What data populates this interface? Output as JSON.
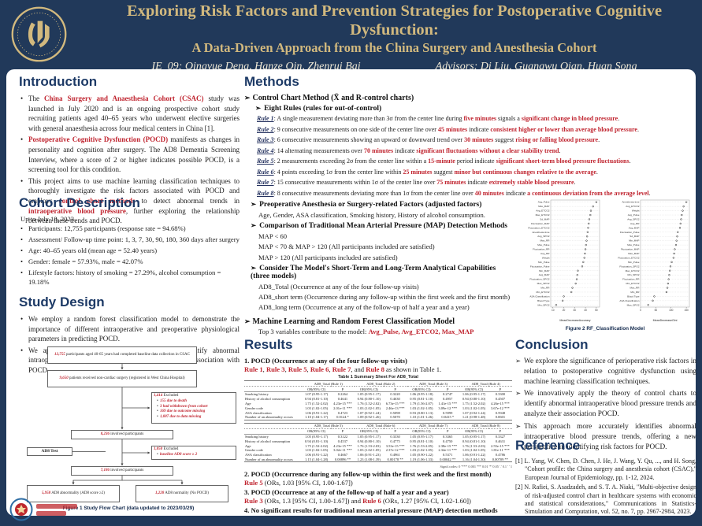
{
  "header": {
    "title_line1": "Exploring Risk Factors and Prevention Strategies for Postoperative Cognitive Dysfunction:",
    "title_line2": "A Data-Driven Approach from the China Surgery and Anesthesia Cohort",
    "team": "IE_09: Qingyue Deng, Hanze Qin, Zhenrui Bai",
    "advisors": "Advisors: Di Liu, Guangwu Qian, Huan Song"
  },
  "colors": {
    "navy": "#21395a",
    "gold": "#d2b97e",
    "accent_red": "#c02530",
    "heading_navy": "#1d3a66"
  },
  "intro": {
    "heading": "Introduction",
    "bullets": [
      [
        [
          "The ",
          "n"
        ],
        [
          "China Surgery and Anaesthesia Cohort (CSAC)",
          "r"
        ],
        [
          " study was launched in July 2020 and is an ongoing prospective cohort study recruiting patients aged 40–65 years who underwent elective surgeries with general anaesthesia across four medical centers in China [1].",
          "n"
        ]
      ],
      [
        [
          "Postoperative Cognitive Dysfunction (POCD)",
          "r"
        ],
        [
          " manifests as changes in personality and cognition after surgery. The AD8 Dementia Screening Interview, where a score of 2 or higher indicates possible POCD, is a screening tool for this condition.",
          "n"
        ]
      ],
      [
        [
          "This project aims to use machine learning classification techniques to thoroughly investigate the risk factors associated with POCD and employs ",
          "n"
        ],
        [
          "control chart methods",
          "r"
        ],
        [
          " to detect abnormal trends in ",
          "n"
        ],
        [
          "intraoperative blood pressure",
          "r"
        ],
        [
          ", further exploring the relationship between these trends and POCD.",
          "n"
        ]
      ]
    ]
  },
  "cohort": {
    "heading": "Cohort Description",
    "intro_line": "Up to July 18, 2023,",
    "bullets": [
      "Participants: 12,755 participants (response rate = 94.68%)",
      "Assessment/ Follow-up time point: 1, 3, 7, 30, 90, 180, 360 days after surgery",
      "Age: 40–65 years old (mean age = 52.40 years)",
      "Gender: female = 57.93%, male = 42.07%",
      "Lifestyle factors:  history of smoking = 27.29%, alcohol consumption = 19.18%"
    ]
  },
  "study": {
    "heading": "Study Design",
    "bullets": [
      "We employ a random forest classification model to demonstrate the importance of different intraoperative and preoperative physiological parameters in predicting POCD.",
      "We apply the theory of control charts [2] to identify abnormal intraoperative blood pressure trends and analyze their association with POCD."
    ],
    "flow": {
      "caption": "Figure 1 Study Flow Chart (data updated to 2023/03/29)",
      "b1": {
        "num": "12,755",
        "text": " participants aged 40-65 years had completed baseline data collection in CSAC"
      },
      "b2": {
        "num": "9,650",
        "text": " patients received non-cardiac surgery (registered in West China Hospital)"
      },
      "e1": {
        "num": "1,414",
        "text": " Excluded",
        "items": [
          "155 due to death",
          "3 had withdrawn from cohort",
          "169 due to outcome missing",
          "1,087 due to data missing"
        ]
      },
      "b3": {
        "num": "8,236",
        "text": " involved participants"
      },
      "ad8": {
        "text": "AD8 Test"
      },
      "e2": {
        "num": "1,050",
        "text": " Excluded",
        "items": [
          "baseline AD8 score ≥ 2"
        ]
      },
      "b4": {
        "num": "7,186",
        "text": " involved participants"
      },
      "b5": {
        "num": "5,958",
        "text": " AD8 abnormality (AD8 score ≥2)"
      },
      "b6": {
        "num": "1,228",
        "text": " AD8 normality (No POCD)"
      }
    }
  },
  "methods": {
    "heading": "Methods",
    "sub1": "Control Chart Method (X̄ and R-control charts)",
    "sub2": "Eight Rules (rules for out-of-control)",
    "rules": [
      {
        "label": "Rule 1",
        "segs": [
          [
            ": A single measurement deviating more than 3σ from the center line during ",
            "n"
          ],
          [
            "five minutes",
            "r"
          ],
          [
            " signals a ",
            "n"
          ],
          [
            "significant change in blood pressure",
            "r"
          ],
          [
            ".",
            "n"
          ]
        ]
      },
      {
        "label": "Rule 2",
        "segs": [
          [
            ": 9 consecutive measurements on one side of the center line over ",
            "n"
          ],
          [
            "45 minutes",
            "r"
          ],
          [
            " indicate ",
            "n"
          ],
          [
            "consistent higher or lower than average blood pressure",
            "r"
          ],
          [
            ".",
            "n"
          ]
        ]
      },
      {
        "label": "Rule 3",
        "segs": [
          [
            ": 6 consecutive measurements showing an upward or downward trend over ",
            "n"
          ],
          [
            "30 minutes",
            "r"
          ],
          [
            " suggest ",
            "n"
          ],
          [
            "rising or falling blood pressure",
            "r"
          ],
          [
            ".",
            "n"
          ]
        ]
      },
      {
        "label": "Rule 4",
        "segs": [
          [
            ": 14 alternating measurements over ",
            "n"
          ],
          [
            "70 minutes",
            "r"
          ],
          [
            " indicate ",
            "n"
          ],
          [
            "significant fluctuations without a clear stability trend",
            "r"
          ],
          [
            ".",
            "n"
          ]
        ]
      },
      {
        "label": "Rule 5",
        "segs": [
          [
            ": 2 measurements exceeding 2σ from the center line within a ",
            "n"
          ],
          [
            "15-minute",
            "r"
          ],
          [
            " period indicate ",
            "n"
          ],
          [
            "significant short-term blood pressure fluctuations",
            "r"
          ],
          [
            ".",
            "n"
          ]
        ]
      },
      {
        "label": "Rule 6",
        "segs": [
          [
            ": 4 points exceeding 1σ from the center line within ",
            "n"
          ],
          [
            "25 minutes",
            "r"
          ],
          [
            " suggest ",
            "n"
          ],
          [
            "minor but continuous changes relative to the average",
            "r"
          ],
          [
            ".",
            "n"
          ]
        ]
      },
      {
        "label": "Rule 7",
        "segs": [
          [
            ": 15 consecutive measurements within 1σ of the center line over ",
            "n"
          ],
          [
            "75 minutes",
            "r"
          ],
          [
            " indicate ",
            "n"
          ],
          [
            "extremely stable blood pressure",
            "r"
          ],
          [
            ".",
            "n"
          ]
        ]
      },
      {
        "label": "Rule 8",
        "segs": [
          [
            ": 8 consecutive measurements deviating more than 1σ from the center line over ",
            "n"
          ],
          [
            "40 minutes",
            "r"
          ],
          [
            " indicate ",
            "n"
          ],
          [
            "a continuous deviation from the average level",
            "r"
          ],
          [
            ".",
            "n"
          ]
        ]
      }
    ],
    "adj_head": "Preoperative Anesthesia or Surgery-related Factors (adjusted factors)",
    "adj_line": "Age, Gender, ASA classification, Smoking history, History of alcohol consumption.",
    "map_head": "Comparison of Traditional Mean Arterial Pressure (MAP) Detection Methods",
    "map_lines": [
      "MAP < 60",
      "MAP < 70 & MAP > 120 (All participants included are satisfied)",
      "MAP > 120 (All participants included are satisfied)"
    ],
    "model_head": "Consider The Model's Short-Term and Long-Term Analytical Capabilities (three models)",
    "model_lines": [
      "AD8_Total (Occurrence at any of the four follow-up visits)",
      "AD8_short term (Occurrence during any follow-up within the first week and the first month)",
      "AD8_long term (Occurrence at any of the follow-up of half a year and a year)"
    ],
    "ml_head": "Machine Learning and Random Forest Classification Model",
    "ml_line": [
      [
        "Top 3 variables contribute to the model: ",
        "n"
      ],
      [
        "Avg_Pulse, Avg_ETCO2, Max_MAP",
        "r"
      ]
    ]
  },
  "results": {
    "heading": "Results",
    "item1_head": "1. POCD (Occurrence at any of the four follow-up visits)",
    "item1_line": [
      [
        "Rule 1",
        "r"
      ],
      [
        ", ",
        "n"
      ],
      [
        "Rule 3",
        "r"
      ],
      [
        ", ",
        "n"
      ],
      [
        "Rule 5",
        "r"
      ],
      [
        ", ",
        "n"
      ],
      [
        "Rule 6",
        "r"
      ],
      [
        ", ",
        "n"
      ],
      [
        "Rule 7",
        "r"
      ],
      [
        ", and ",
        "n"
      ],
      [
        "Rule 8",
        "r"
      ],
      [
        " as shown in Table 1.",
        "n"
      ]
    ],
    "item2_head": "2. POCD (Occurrence during any follow-up within the first week and the first month)",
    "item2_line": [
      [
        "Rule 5",
        "r"
      ],
      [
        " (ORs, 1.03 [95% CI, 1.00-1.67])",
        "n"
      ]
    ],
    "item3_head": "3. POCD (Occurrence at any of the follow-up of half a year and a year)",
    "item3_line": [
      [
        "Rule 3",
        "r"
      ],
      [
        " (ORs, 1.3 [95% CI, 1.00-1.67]) and ",
        "n"
      ],
      [
        "Rule 6",
        "r"
      ],
      [
        " (ORs, 1.27 [95% CI, 1.02-1.60])",
        "n"
      ]
    ],
    "item4_head": "4. No significant results for traditional mean arterial pressure (MAP) detection methods",
    "table": {
      "title": "Table 1 Summary Sheet For AD8_Total",
      "sub": [
        "OR(95% CI)",
        "P"
      ],
      "signif": "Signif.codes:  0 '***' 0.001 '**' 0.01 '*' 0.05 '.' 0.1 ' ' 1",
      "bands": [
        {
          "groups": [
            "AD8_Total (Rule 1)",
            "AD8_Total (Rule 2)",
            "AD8_Total (Rule 3)",
            "AD8_Total (Rule 4)"
          ],
          "rows": [
            {
              "label": "Smoking history",
              "cells": [
                "1.07 (0.95-1.17)",
                "0.2264",
                "1.05 (0.95-1.17)",
                "0.3220",
                "1.06 (0.95-1.18)",
                "0.2747",
                "1.06 (0.95-1.17)",
                "0.3300"
              ]
            },
            {
              "label": "History of alcohol consumption",
              "cells": [
                "0.94 (0.81-1.10)",
                "0.4641",
                "0.94 (0.80-1.10)",
                "0.4630",
                "0.95 (0.81-1.10)",
                "0.4957",
                "0.94 (0.80-1.10)",
                "0.4507"
              ]
            },
            {
              "label": "Age",
              "cells": [
                "1.75 (1.52-2.02)",
                "4.23e-15 ***",
                "1.76 (1.52-2.02)",
                "6.73e-15 ***",
                "1.79 (1.56-2.07)",
                "1.41e-15 ***",
                "1.75 (1.52-2.02)",
                "4.26e-15 ***"
              ]
            },
            {
              "label": "Gender code",
              "cells": [
                "1.03 (1.02-1.05)",
                "2.01e-11 ***",
                "1.03 (1.02-1.05)",
                "2.46e-13 ***",
                "1.03 (1.02-1.05)",
                "3.09e-12 ***",
                "1.03 (1.02-1.05)",
                "3.67e-12 ***"
              ]
            },
            {
              "label": "ASA classification",
              "cells": [
                "1.06 (0.91-1.22)",
                "0.4723",
                "1.07 (0.92-1.24)",
                "0.5098",
                "0.93 (0.80-1.13)",
                "0.5999",
                "1.07 (0.92-1.24)",
                "0.5948"
              ]
            },
            {
              "label": "Number of an abnormality occurs",
              "cells": [
                "1.10 (1.04-1.17)",
                "0.0124 *",
                "1.09 (0.92-1.26)",
                "0.5070",
                "1.10 (1.01-1.26)",
                "0.0415 *",
                "1.21 (0.98-1.48)",
                "0.0601"
              ]
            }
          ]
        },
        {
          "groups": [
            "AD8_Total (Rule 5)",
            "AD8_Total (Rule 6)",
            "AD8_Total (Rule 7)",
            "AD8_Total (Rule 8)"
          ],
          "rows": [
            {
              "label": "Smoking history",
              "cells": [
                "1.05 (0.95-1.17)",
                "0.3122",
                "1.05 (0.95-1.17)",
                "0.3330",
                "1.05 (0.95-1.17)",
                "0.3365",
                "1.05 (0.95-1.17)",
                "0.3327"
              ]
            },
            {
              "label": "History of alcohol consumption",
              "cells": [
                "0.94 (0.81-1.10)",
                "0.4537",
                "0.94 (0.80-1.10)",
                "0.4775",
                "0.95 (0.81-1.10)",
                "0.4750",
                "0.94 (0.81-1.10)",
                "0.4631"
              ]
            },
            {
              "label": "Age",
              "cells": [
                "1.75 (1.52-2.02)",
                "4.23e-15 ***",
                "1.76 (1.53-2.03)",
                "3.53e-15 ***",
                "1.76 (1.53-2.05)",
                "2.38e-15 ***",
                "1.76 (1.53-2.03)",
                "2.55e-15 ***"
              ]
            },
            {
              "label": "Gender code",
              "cells": [
                "1.03 (1.02-1.05)",
                "3.02e-11 ***",
                "1.03 (1.02-1.05)",
                "2.37e-12 ***",
                "1.03 (1.02-1.05)",
                "2.34e-11 ***",
                "1.03 (1.02-1.05)",
                "1.81e-11 ***"
              ]
            },
            {
              "label": "ASA classification",
              "cells": [
                "1.06 (0.91-1.22)",
                "0.4667",
                "1.06 (0.91-1.23)",
                "0.4961",
                "1.05 (0.90-1.22)",
                "0.5371",
                "1.06 (0.91-1.22)",
                "0.4786"
              ]
            },
            {
              "label": "Number of an abnormality occurs",
              "cells": [
                "1.15 (1.04-1.28)",
                "0.00896 **",
                "1.23 (1.08-1.39)",
                "0.00178 **",
                "1.19 (1.06-1.33)",
                "0.00042 **",
                "1.16 (1.04-1.30)",
                "0.00709 **"
              ]
            }
          ]
        }
      ]
    }
  },
  "figure2": {
    "caption": "Figure 2 RF_Classification Model"
  },
  "chart_data": {
    "type": "scatter",
    "title": "Figure 2 RF_Classification Model",
    "subtitle": "Random forest variable importance dot plots",
    "legend_position": "none",
    "grid": "dotted row guides",
    "panels": [
      {
        "xlabel": "MeanDecreaseAccuracy",
        "xlim": [
          8,
          53
        ],
        "xticks": [
          10,
          20,
          30,
          40,
          50
        ],
        "labels": [
          "Avg_Pulse",
          "Max_MAP",
          "Avg_ETCO2",
          "Max_ETCO2",
          "Sd_MAP",
          "Fluctuation_MAP",
          "Fluctuation_ETCO2",
          "Anesthesia time",
          "Avg_SPO2",
          "Max_RR",
          "Max_Pulse",
          "Fluctuation_RR",
          "Avg_RR",
          "Weight",
          "Min_Pulse",
          "Fluctuation_Pulse",
          "Min_MAP",
          "Avg_MAP",
          "Fluctuation_SPO2",
          "Max_SPO2",
          "Min_RR",
          "Min_ETCO2",
          "ASA Classification",
          "Blood Type",
          "Min_SPO2"
        ],
        "values": [
          50,
          47,
          45,
          44.5,
          43.5,
          43,
          42.5,
          42,
          41.5,
          41,
          40.5,
          40,
          39.5,
          39,
          38,
          37,
          33,
          32.5,
          32,
          31,
          28,
          27,
          20,
          19,
          13
        ]
      },
      {
        "xlabel": "MeanDecreaseGini",
        "xlim": [
          0,
          160
        ],
        "xticks": [
          0,
          50,
          100,
          150
        ],
        "labels": [
          "Anesthesia time",
          "Avg_ETCO2",
          "Weight",
          "Avg_Pulse",
          "Avg_SPO2",
          "Avg_RR",
          "Avg_MAP",
          "Fluctuation_Pulse",
          "Sd_MAP",
          "Min_MAP",
          "Max_Pulse",
          "Fluctuation_MAP",
          "Max_MAP",
          "Fluctuation_ETCO2",
          "Min_Pulse",
          "Fluctuation_SPO2",
          "Max_ETCO2",
          "Min_SPO2",
          "Fluctuation_RR",
          "Min_ETCO2",
          "Max_RR",
          "Min_RR",
          "Blood Type",
          "ASA Classification",
          "Max_SPO2"
        ],
        "values": [
          150,
          141,
          138,
          135,
          133,
          131,
          129,
          122,
          120,
          118,
          116,
          112,
          110,
          108,
          102,
          98,
          96,
          94,
          92,
          90,
          88,
          85,
          45,
          40,
          25
        ]
      }
    ]
  },
  "conclusion": {
    "heading": "Conclusion",
    "bullets": [
      "We explore the significance of perioperative risk factors in relation to postoperative cognitive dysfunction using machine learning classification techniques.",
      "We innovatively apply the theory of control charts to identify abnormal intraoperative blood pressure trends and analyze their association POCD.",
      "This approach more accurately identifies abnormal intraoperative blood pressure trends, offering a new perspective in identifying risk factors for POCD."
    ]
  },
  "reference": {
    "heading": "Reference",
    "items": [
      "[1] L. Yang, W. Chen, D. Chen, J. He, J. Wang, Y. Qu, ..., and H. Song, \"Cohort profile: the China surgery and anesthesia cohort (CSAC),\" European Journal of Epidemiology, pp. 1-12, 2024.",
      "[2] N. Rafiei, S. Asadzadeh, and S. T. A. Niaki, \"Multi-objective design of risk-adjusted control chart in healthcare systems with economic and statistical considerations,\" Communications in Statistics-Simulation and Computation, vol. 52, no. 7, pp. 2967-2984, 2023."
    ]
  }
}
